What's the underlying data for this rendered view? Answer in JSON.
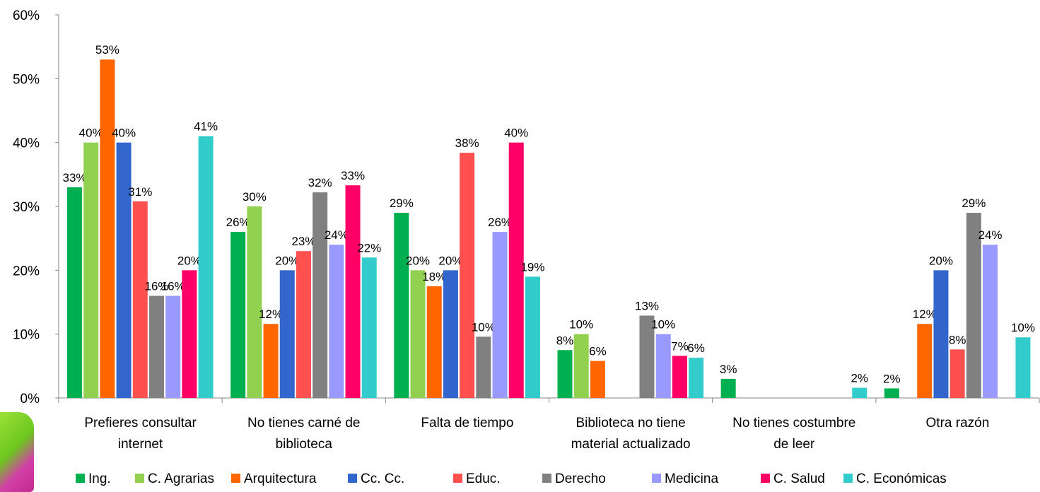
{
  "chart_data": {
    "type": "bar",
    "title": "",
    "xlabel": "",
    "ylabel": "",
    "ylim": [
      0,
      60
    ],
    "yticks": [
      "0%",
      "10%",
      "20%",
      "30%",
      "40%",
      "50%",
      "60%"
    ],
    "grid": false,
    "legend_position": "bottom",
    "categories": [
      [
        "Prefieres consultar",
        "internet"
      ],
      [
        "No tienes carné de",
        "biblioteca"
      ],
      [
        "Falta de tiempo"
      ],
      [
        "Biblioteca no tiene",
        "material actualizado"
      ],
      [
        "No tienes costumbre",
        "de leer"
      ],
      [
        "Otra razón"
      ]
    ],
    "series": [
      {
        "name": "Ing.",
        "color": "#00b050",
        "values": [
          33,
          26,
          29,
          7.5,
          3,
          1.5
        ],
        "labels": [
          "33%",
          "26%",
          "29%",
          "8%",
          "3%",
          "2%"
        ]
      },
      {
        "name": "C. Agrarias",
        "color": "#92d050",
        "values": [
          40,
          30,
          20,
          10,
          null,
          null
        ],
        "labels": [
          "40%",
          "30%",
          "20%",
          "10%",
          "",
          ""
        ]
      },
      {
        "name": "Arquitectura",
        "color": "#ff6600",
        "values": [
          53,
          11.6,
          17.5,
          5.8,
          null,
          11.6
        ],
        "labels": [
          "53%",
          "12%",
          "18%",
          "6%",
          "",
          "12%"
        ]
      },
      {
        "name": "Cc. Cc.",
        "color": "#3366cc",
        "values": [
          40,
          20,
          20,
          null,
          null,
          20
        ],
        "labels": [
          "40%",
          "20%",
          "20%",
          "",
          "",
          "20%"
        ]
      },
      {
        "name": "Educ.",
        "color": "#ff5050",
        "values": [
          30.8,
          23,
          38.4,
          null,
          null,
          7.6
        ],
        "labels": [
          "31%",
          "23%",
          "38%",
          "",
          "",
          "8%"
        ]
      },
      {
        "name": "Derecho",
        "color": "#808080",
        "values": [
          16,
          32.2,
          9.6,
          12.9,
          null,
          29
        ],
        "labels": [
          "16%",
          "32%",
          "10%",
          "13%",
          "",
          "29%"
        ]
      },
      {
        "name": "Medicina",
        "color": "#9999ff",
        "values": [
          16,
          24,
          26,
          10,
          null,
          24
        ],
        "labels": [
          "16%",
          "24%",
          "26%",
          "10%",
          "",
          "24%"
        ]
      },
      {
        "name": "C. Salud",
        "color": "#ff0066",
        "values": [
          20,
          33.3,
          40,
          6.6,
          null,
          null
        ],
        "labels": [
          "20%",
          "33%",
          "40%",
          "7%",
          "",
          ""
        ]
      },
      {
        "name": "C. Económicas",
        "color": "#33cccc",
        "values": [
          41,
          22,
          19,
          6.3,
          1.6,
          9.5
        ],
        "labels": [
          "41%",
          "22%",
          "19%",
          "6%",
          "2%",
          "10%"
        ]
      }
    ]
  }
}
